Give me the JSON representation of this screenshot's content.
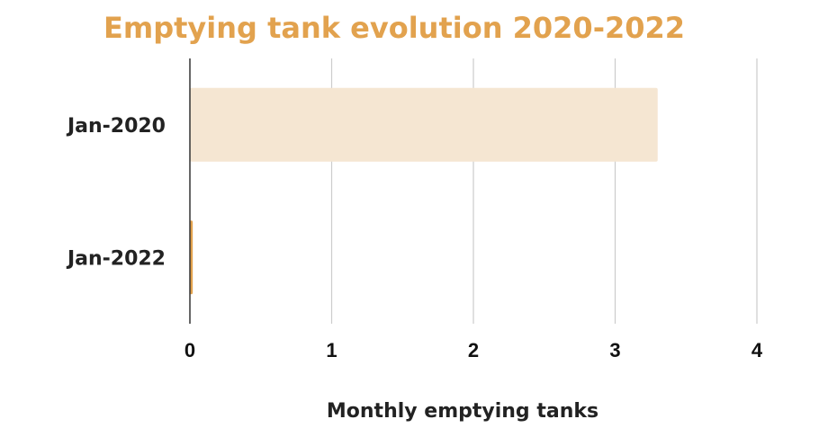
{
  "chart_data": {
    "type": "bar",
    "orientation": "horizontal",
    "title": "Emptying tank evolution 2020-2022",
    "xlabel": "Monthly emptying tanks",
    "ylabel": "",
    "categories": [
      "Jan-2020",
      "Jan-2022"
    ],
    "values": [
      3.3,
      0.02
    ],
    "xlim": [
      0,
      4
    ],
    "x_ticks": [
      "0",
      "1",
      "2",
      "3",
      "4"
    ],
    "grid": "vertical",
    "legend": "none"
  },
  "colors": {
    "title": "#E2A24E",
    "bars": [
      "#F5E6D2",
      "#E2A24E"
    ],
    "grid": "#CCCCCC",
    "axis": "#333333"
  }
}
